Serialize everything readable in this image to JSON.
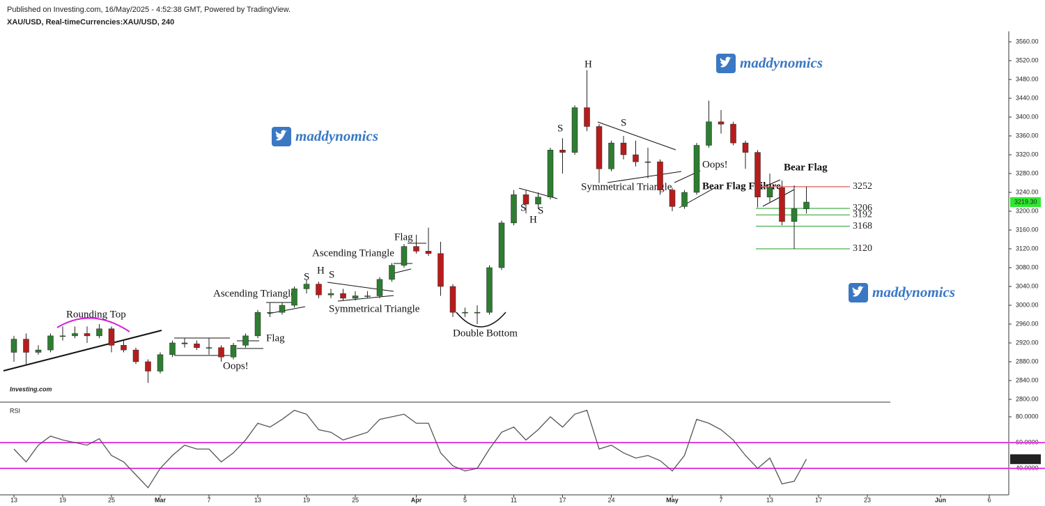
{
  "header": {
    "published": "Published on Investing.com, 16/May/2025 - 4:52:38 GMT, Powered by TradingView.",
    "symbol": "XAU/USD, Real-timeCurrencies:XAU/USD, 240"
  },
  "logo": "Investing.com",
  "watermark": "maddynomics",
  "annotations": [
    "Rounding Top",
    "Flag",
    "Oops!",
    "Ascending Triangle",
    "S",
    "H",
    "S",
    "Symmetrical Triangle",
    "Ascending Triangle",
    "Flag",
    "Double Bottom",
    "S",
    "S",
    "H",
    "S",
    "H",
    "S",
    "Symmetrical Triangle",
    "Oops!",
    "Bear Flag Failure",
    "Bear Flag"
  ],
  "chart_data": [
    {
      "type": "candlestick",
      "categories": [
        "13",
        null,
        null,
        null,
        "19",
        null,
        null,
        null,
        "25",
        null,
        null,
        null,
        "Mar",
        null,
        null,
        null,
        "7",
        null,
        null,
        null,
        "13",
        null,
        null,
        null,
        "19",
        null,
        null,
        null,
        "25",
        null,
        null,
        null,
        null,
        "Apr",
        null,
        null,
        null,
        "5",
        null,
        null,
        null,
        "11",
        null,
        null,
        null,
        "17",
        null,
        null,
        null,
        "24",
        null,
        null,
        null,
        null,
        "May",
        null,
        null,
        null,
        "7",
        null,
        null,
        null,
        "13",
        null,
        null,
        null,
        "17",
        null,
        null,
        null,
        "23",
        null,
        null,
        null,
        null,
        null,
        "Jun",
        null,
        null,
        null,
        "6"
      ],
      "open": [
        2900,
        2928,
        2900,
        2905,
        2935,
        2935,
        2940,
        2935,
        2950,
        2915,
        2905,
        2880,
        2860,
        2895,
        2920,
        2918,
        2910,
        2910,
        2890,
        2915,
        2935,
        2985,
        2985,
        3000,
        3035,
        3045,
        3022,
        3025,
        3015,
        3020,
        3020,
        3055,
        3085,
        3125,
        3115,
        3110,
        3040,
        2985,
        2985,
        2985,
        3080,
        3175,
        3235,
        3215,
        3230,
        3330,
        3325,
        3420,
        3380,
        3290,
        3345,
        3320,
        3305,
        3305,
        3245,
        3210,
        3240,
        3340,
        3390,
        3385,
        3345,
        3325,
        3230,
        3250,
        3178,
        3205,
        null,
        null,
        null,
        null,
        null,
        null,
        null,
        null,
        null,
        null,
        null,
        null,
        null,
        null,
        null
      ],
      "high": [
        2935,
        2940,
        2915,
        2940,
        2955,
        2955,
        2955,
        2960,
        2955,
        2925,
        2910,
        2885,
        2900,
        2925,
        2930,
        2925,
        2930,
        2915,
        2920,
        2940,
        2990,
        3005,
        3005,
        3040,
        3055,
        3050,
        3035,
        3035,
        3030,
        3030,
        3060,
        3090,
        3130,
        3150,
        3165,
        3135,
        3045,
        2995,
        3000,
        3085,
        3180,
        3245,
        3245,
        3240,
        3335,
        3355,
        3425,
        3500,
        3385,
        3350,
        3360,
        3350,
        3335,
        3310,
        3250,
        3245,
        3345,
        3435,
        3415,
        3390,
        3350,
        3330,
        3280,
        3265,
        3255,
        3252,
        null,
        null,
        null,
        null,
        null,
        null,
        null,
        null,
        null,
        null,
        null,
        null,
        null,
        null,
        null
      ],
      "low": [
        2880,
        2875,
        2895,
        2900,
        2925,
        2930,
        2920,
        2930,
        2900,
        2900,
        2875,
        2835,
        2855,
        2890,
        2910,
        2905,
        2895,
        2880,
        2885,
        2910,
        2930,
        2975,
        2980,
        2995,
        3025,
        3015,
        3015,
        3010,
        3010,
        3015,
        3015,
        3050,
        3080,
        3110,
        3105,
        3020,
        2975,
        2975,
        2960,
        2980,
        3075,
        3170,
        3195,
        3205,
        3225,
        3280,
        3320,
        3370,
        3260,
        3285,
        3310,
        3295,
        3270,
        3235,
        3200,
        3205,
        3235,
        3335,
        3365,
        3340,
        3290,
        3208,
        3220,
        3170,
        3120,
        3195,
        null,
        null,
        null,
        null,
        null,
        null,
        null,
        null,
        null,
        null,
        null,
        null,
        null,
        null,
        null
      ],
      "close": [
        2928,
        2900,
        2905,
        2935,
        2935,
        2940,
        2935,
        2950,
        2915,
        2905,
        2880,
        2860,
        2895,
        2920,
        2918,
        2910,
        2910,
        2890,
        2915,
        2935,
        2985,
        2985,
        3000,
        3035,
        3045,
        3022,
        3025,
        3015,
        3020,
        3020,
        3055,
        3085,
        3125,
        3115,
        3110,
        3040,
        2985,
        2985,
        2985,
        3080,
        3175,
        3235,
        3215,
        3230,
        3330,
        3325,
        3420,
        3380,
        3290,
        3345,
        3320,
        3305,
        3305,
        3245,
        3210,
        3240,
        3340,
        3390,
        3385,
        3345,
        3325,
        3230,
        3250,
        3178,
        3205,
        3219.3,
        null,
        null,
        null,
        null,
        null,
        null,
        null,
        null,
        null,
        null,
        null,
        null,
        null,
        null,
        null
      ],
      "close_label": "3219.30",
      "up_color": "#2e7d32",
      "down_color": "#b71c1c",
      "ylim": [
        2780,
        3580
      ],
      "yticks": [
        {
          "value": 2800,
          "label": "2800.00"
        },
        {
          "value": 2840,
          "label": "2840.00"
        },
        {
          "value": 2880,
          "label": "2880.00"
        },
        {
          "value": 2920,
          "label": "2920.00"
        },
        {
          "value": 2960,
          "label": "2960.00"
        },
        {
          "value": 3000,
          "label": "3000.00"
        },
        {
          "value": 3040,
          "label": "3040.00"
        },
        {
          "value": 3080,
          "label": "3080.00"
        },
        {
          "value": 3120,
          "label": "3120.00"
        },
        {
          "value": 3160,
          "label": "3160.00"
        },
        {
          "value": 3200,
          "label": "3200.00"
        },
        {
          "value": 3240,
          "label": "3240.00"
        },
        {
          "value": 3280,
          "label": "3280.00"
        },
        {
          "value": 3320,
          "label": "3320.00"
        },
        {
          "value": 3360,
          "label": "3360.00"
        },
        {
          "value": 3400,
          "label": "3400.00"
        },
        {
          "value": 3440,
          "label": "3440.00"
        },
        {
          "value": 3480,
          "label": "3480.00"
        },
        {
          "value": 3520,
          "label": "3520.00"
        },
        {
          "value": 3560,
          "label": "3560.00"
        }
      ],
      "levels": [
        {
          "value": 3252,
          "color": "#e57373"
        },
        {
          "value": 3206,
          "color": "#66bb6a"
        },
        {
          "value": 3192,
          "color": "#66bb6a"
        },
        {
          "value": 3168,
          "color": "#66bb6a"
        },
        {
          "value": 3120,
          "color": "#66bb6a"
        }
      ]
    },
    {
      "type": "line",
      "title": "RSI",
      "color": "#555555",
      "values": [
        55,
        45,
        58,
        65,
        62,
        60,
        58,
        63,
        50,
        45,
        35,
        25,
        40,
        50,
        58,
        55,
        55,
        45,
        52,
        62,
        75,
        72,
        78,
        85,
        82,
        70,
        68,
        62,
        65,
        68,
        78,
        80,
        82,
        75,
        75,
        52,
        42,
        38,
        40,
        55,
        68,
        72,
        62,
        70,
        80,
        72,
        82,
        85,
        55,
        58,
        52,
        48,
        50,
        46,
        38,
        50,
        78,
        75,
        70,
        62,
        50,
        40,
        48,
        28,
        30,
        47.1303,
        null,
        null,
        null,
        null,
        null,
        null,
        null,
        null,
        null,
        null,
        null,
        null,
        null,
        null,
        null
      ],
      "value_label": "47.1303",
      "ylim": [
        20,
        90
      ],
      "yticks": [
        {
          "value": 40,
          "label": "40.0000"
        },
        {
          "value": 60,
          "label": "60.0000"
        },
        {
          "value": 80,
          "label": "80.0000"
        }
      ],
      "levels": [
        60,
        40
      ],
      "level_color": "#e040e0"
    }
  ]
}
